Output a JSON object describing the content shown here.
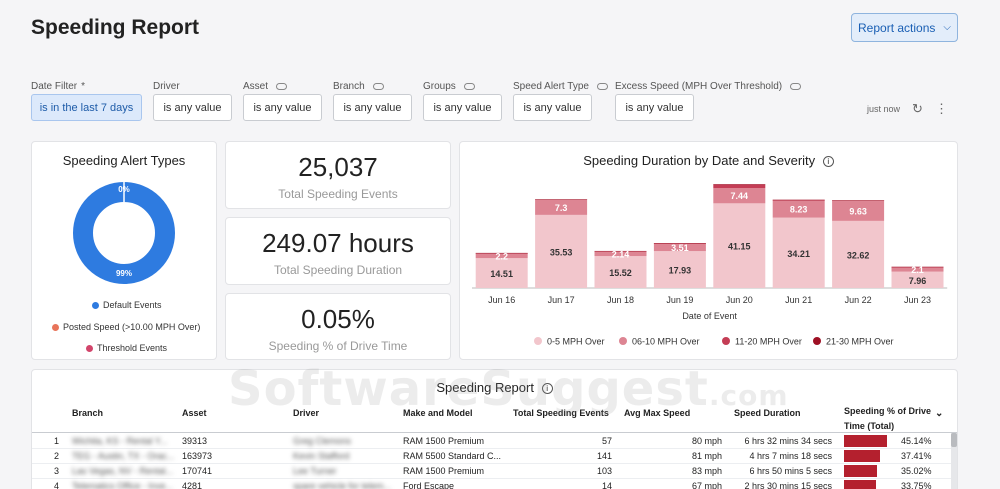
{
  "header": {
    "title": "Speeding Report",
    "actions_label": "Report actions",
    "actions_icon": "chevron-down-icon"
  },
  "filters": [
    {
      "label": "Date Filter",
      "required_mark": "*",
      "value": "is in the last 7 days",
      "linked": false,
      "active": true
    },
    {
      "label": "Driver",
      "value": "is any value",
      "linked": false,
      "active": false
    },
    {
      "label": "Asset",
      "value": "is any value",
      "linked": true,
      "active": false
    },
    {
      "label": "Branch",
      "value": "is any value",
      "linked": true,
      "active": false
    },
    {
      "label": "Groups",
      "value": "is any value",
      "linked": true,
      "active": false
    },
    {
      "label": "Speed Alert Type",
      "value": "is any value",
      "linked": true,
      "active": false
    },
    {
      "label": "Excess Speed (MPH Over Threshold)",
      "value": "is any value",
      "linked": true,
      "active": false
    }
  ],
  "refresh": {
    "status": "just now",
    "icon": "refresh-icon",
    "more_icon": "more-vertical-icon"
  },
  "alert_types": {
    "title": "Speeding Alert Types",
    "top_label": "0%",
    "main_label": "99%",
    "legend": [
      {
        "label": "Default Events",
        "color": "#2e7be0"
      },
      {
        "label": "Posted Speed (>10.00 MPH Over)",
        "color": "#e8745a"
      },
      {
        "label": "Threshold Events",
        "color": "#d2456b"
      }
    ]
  },
  "kpis": [
    {
      "value": "25,037",
      "label": "Total Speeding Events"
    },
    {
      "value": "249.07 hours",
      "label": "Total Speeding Duration"
    },
    {
      "value": "0.05%",
      "label": "Speeding % of Drive Time"
    }
  ],
  "chart_data": {
    "type": "bar",
    "stacked": true,
    "title": "Speeding Duration by Date and Severity",
    "info_icon": "info-icon",
    "xlabel": "Date of Event",
    "categories": [
      "Jun 16",
      "Jun 17",
      "Jun 18",
      "Jun 19",
      "Jun 20",
      "Jun 21",
      "Jun 22",
      "Jun 23"
    ],
    "series": [
      {
        "name": "0-5 MPH Over",
        "color": "#f2c6cc",
        "values": [
          14.51,
          35.53,
          15.52,
          17.93,
          41.15,
          34.21,
          32.62,
          7.96
        ]
      },
      {
        "name": "06-10 MPH Over",
        "color": "#dd8593",
        "values": [
          2.2,
          7.3,
          2.14,
          3.51,
          7.44,
          8.23,
          9.63,
          2.1
        ]
      },
      {
        "name": "11-20 MPH Over",
        "color": "#c43d55",
        "values": [
          0.3,
          0.2,
          0.3,
          0.3,
          1.6,
          0.4,
          0.3,
          0.2
        ]
      },
      {
        "name": "21-30 MPH Over",
        "color": "#9e1024",
        "values": [
          0.05,
          0.05,
          0.05,
          0.05,
          0.3,
          0.05,
          0.05,
          0.05
        ]
      }
    ],
    "labels": {
      "bottom": [
        "14.51",
        "35.53",
        "15.52",
        "17.93",
        "41.15",
        "34.21",
        "32.62",
        "7.96"
      ],
      "second": [
        "2.2",
        "7.3",
        "2.14",
        "3.51",
        "7.44",
        "8.23",
        "9.63",
        "2.1"
      ]
    },
    "ylim": [
      0,
      52
    ],
    "grid": false,
    "legend_position": "bottom"
  },
  "table": {
    "title": "Speeding Report",
    "info_icon": "info-icon",
    "sort_icon": "chevron-down-icon",
    "columns": [
      "Branch",
      "Asset",
      "Driver",
      "Make and Model",
      "Total Speeding Events",
      "Avg Max Speed",
      "Speed Duration",
      "Speeding % of Drive Time (Total)"
    ],
    "rows": [
      {
        "n": "1",
        "branch": "Wichita, KS - Rental Y...",
        "asset": "39313",
        "driver": "Greg Clemons",
        "model": "RAM 1500 Premium",
        "events": "57",
        "avg": "80 mph",
        "duration": "6 hrs 32 mins 34 secs",
        "pct": "45.14%",
        "pct_value": 45.14
      },
      {
        "n": "2",
        "branch": "TEG - Austin, TX - Orac...",
        "asset": "163973",
        "driver": "Kevin Stafford",
        "model": "RAM 5500 Standard C...",
        "events": "141",
        "avg": "81 mph",
        "duration": "4 hrs 7 mins 18 secs",
        "pct": "37.41%",
        "pct_value": 37.41
      },
      {
        "n": "3",
        "branch": "Las Vegas, NV - Rental...",
        "asset": "170741",
        "driver": "Lee Turner",
        "model": "RAM 1500 Premium",
        "events": "103",
        "avg": "83 mph",
        "duration": "6 hrs 50 mins 5 secs",
        "pct": "35.02%",
        "pct_value": 35.02
      },
      {
        "n": "4",
        "branch": "Telematics Office - Inve...",
        "asset": "4281",
        "driver": "spare vehicle for telem...",
        "model": "Ford Escape",
        "events": "14",
        "avg": "67 mph",
        "duration": "2 hrs 30 mins 15 secs",
        "pct": "33.75%",
        "pct_value": 33.75
      }
    ]
  },
  "watermark": {
    "brand": "SoftwareSuggest",
    "suffix": ".com"
  }
}
